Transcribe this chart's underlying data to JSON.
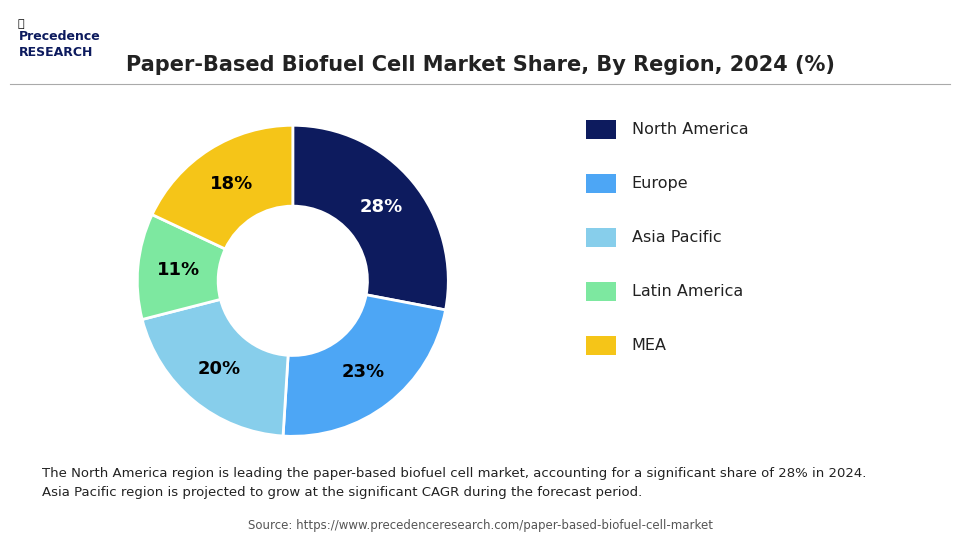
{
  "title": "Paper-Based Biofuel Cell Market Share, By Region, 2024 (%)",
  "labels": [
    "North America",
    "Europe",
    "Asia Pacific",
    "Latin America",
    "MEA"
  ],
  "values": [
    28,
    23,
    20,
    11,
    18
  ],
  "colors": [
    "#0d1b5e",
    "#4da6f5",
    "#87ceeb",
    "#7de8a0",
    "#f5c518"
  ],
  "pct_labels": [
    "28%",
    "23%",
    "20%",
    "11%",
    "18%"
  ],
  "footnote": "The North America region is leading the paper-based biofuel cell market, accounting for a significant share of 28% in 2024.\nAsia Pacific region is projected to grow at the significant CAGR during the forecast period.",
  "source": "Source: https://www.precedenceresearch.com/paper-based-biofuel-cell-market",
  "bg_color": "#ffffff",
  "header_line_color": "#cccccc",
  "footnote_bg": "#e8f0fb"
}
